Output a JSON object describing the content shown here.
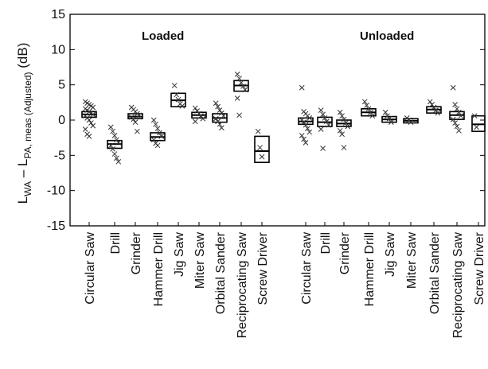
{
  "chart_data": {
    "type": "boxplot",
    "ylabel": {
      "main": "L",
      "sub1": "WA",
      "minus": " – L",
      "sub2": "PA, meas (Adjusted)",
      "unit": " (dB)"
    },
    "ylim": [
      -15,
      15
    ],
    "yticks": [
      -15,
      -10,
      -5,
      0,
      5,
      10,
      15
    ],
    "grid": false,
    "groups": [
      {
        "name": "Loaded",
        "categories": [
          {
            "label": "Circular Saw",
            "median": 0.8,
            "q1": 0.4,
            "q3": 1.2,
            "points": [
              2.6,
              2.4,
              2.2,
              2.0,
              1.8,
              1.6,
              1.4,
              1.2,
              1.0,
              0.8,
              0.6,
              0.3,
              0.0,
              -0.4,
              -0.8,
              -1.3,
              -2.0,
              -2.3
            ]
          },
          {
            "label": "Drill",
            "median": -3.4,
            "q1": -4.0,
            "q3": -2.9,
            "points": [
              -1.0,
              -1.6,
              -2.2,
              -2.8,
              -3.2,
              -3.6,
              -4.1,
              -4.8,
              -5.4,
              -5.9
            ]
          },
          {
            "label": "Grinder",
            "median": 0.5,
            "q1": 0.2,
            "q3": 0.9,
            "points": [
              1.8,
              1.5,
              1.2,
              0.9,
              0.7,
              0.4,
              0.1,
              -0.3,
              -1.6
            ]
          },
          {
            "label": "Hammer Drill",
            "median": -2.4,
            "q1": -2.9,
            "q3": -1.8,
            "points": [
              0.0,
              -0.6,
              -1.2,
              -1.8,
              -2.3,
              -2.8,
              -3.3,
              -3.6
            ]
          },
          {
            "label": "Jig Saw",
            "median": 2.8,
            "q1": 1.9,
            "q3": 3.8,
            "points": [
              4.9,
              3.6,
              2.9,
              2.3,
              2.0
            ]
          },
          {
            "label": "Miter Saw",
            "median": 0.7,
            "q1": 0.3,
            "q3": 1.1,
            "points": [
              1.7,
              1.3,
              0.9,
              0.6,
              0.2,
              -0.2
            ]
          },
          {
            "label": "Orbital Sander",
            "median": 0.3,
            "q1": -0.3,
            "q3": 0.9,
            "points": [
              2.4,
              1.9,
              1.4,
              1.0,
              0.6,
              0.2,
              -0.2,
              -0.6,
              -1.1
            ]
          },
          {
            "label": "Reciprocating Saw",
            "median": 4.9,
            "q1": 4.1,
            "q3": 5.6,
            "points": [
              6.5,
              5.9,
              5.3,
              4.8,
              4.3,
              3.1,
              0.7
            ]
          },
          {
            "label": "Screw Driver",
            "median": -4.4,
            "q1": -6.0,
            "q3": -2.3,
            "points": [
              -1.6,
              -3.9,
              -5.2
            ]
          }
        ]
      },
      {
        "name": "Unloaded",
        "categories": [
          {
            "label": "Circular Saw",
            "median": -0.2,
            "q1": -0.6,
            "q3": 0.3,
            "points": [
              4.6,
              1.2,
              0.9,
              0.6,
              0.3,
              0.0,
              -0.3,
              -0.7,
              -1.2,
              -1.7,
              -2.2,
              -2.7,
              -3.2
            ]
          },
          {
            "label": "Drill",
            "median": -0.3,
            "q1": -0.9,
            "q3": 0.4,
            "points": [
              1.4,
              0.8,
              0.3,
              -0.2,
              -0.7,
              -1.3,
              -4.0
            ]
          },
          {
            "label": "Grinder",
            "median": -0.5,
            "q1": -0.9,
            "q3": 0.0,
            "points": [
              1.1,
              0.6,
              0.1,
              -0.4,
              -0.9,
              -1.5,
              -2.0,
              -3.9
            ]
          },
          {
            "label": "Hammer Drill",
            "median": 1.1,
            "q1": 0.6,
            "q3": 1.6,
            "points": [
              2.6,
              2.1,
              1.6,
              1.1,
              0.6
            ]
          },
          {
            "label": "Jig Saw",
            "median": 0.1,
            "q1": -0.3,
            "q3": 0.5,
            "points": [
              1.1,
              0.6,
              0.2,
              -0.3
            ]
          },
          {
            "label": "Miter Saw",
            "median": -0.1,
            "q1": -0.4,
            "q3": 0.2,
            "points": [
              0.3,
              0.0,
              -0.3
            ]
          },
          {
            "label": "Orbital Sander",
            "median": 1.5,
            "q1": 1.0,
            "q3": 1.9,
            "points": [
              2.6,
              2.2,
              1.8,
              1.4,
              1.0
            ]
          },
          {
            "label": "Reciprocating Saw",
            "median": 0.7,
            "q1": 0.1,
            "q3": 1.2,
            "points": [
              4.6,
              2.2,
              1.6,
              1.1,
              0.6,
              0.1,
              -0.4,
              -0.9,
              -1.5
            ]
          },
          {
            "label": "Screw Driver",
            "median": -0.6,
            "q1": -1.6,
            "q3": 0.6,
            "points": [
              0.6,
              -1.0
            ]
          }
        ]
      }
    ],
    "marker": "x",
    "colors": {
      "box": "#000000",
      "median": "#000000",
      "points": "#333333"
    }
  }
}
